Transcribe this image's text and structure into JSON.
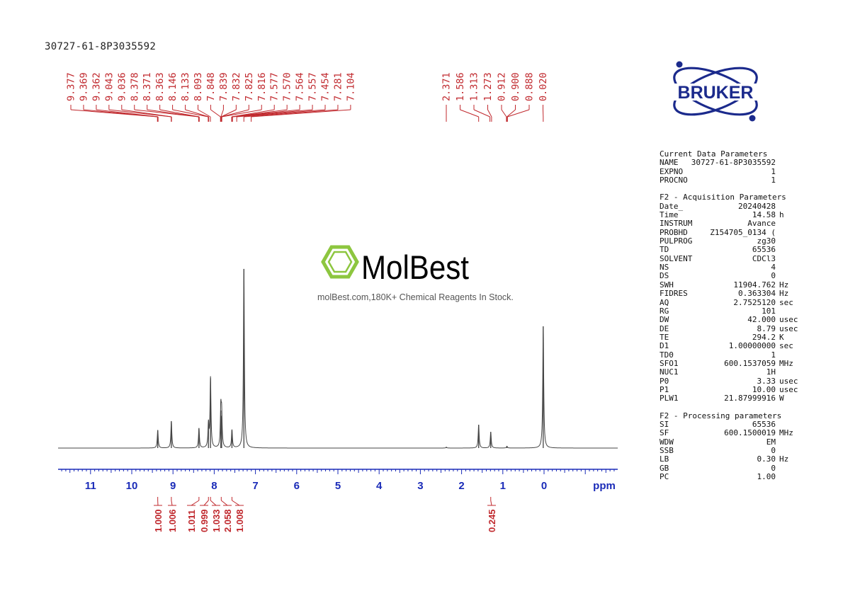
{
  "sample_id": "30727-61-8P3035592",
  "brand": {
    "name": "BRUKER",
    "color": "#1b2a8c"
  },
  "watermark": {
    "name": "MolBest",
    "tagline": "molBest.com,180K+ Chemical Reagents In Stock.",
    "icon": "benzene-ring-icon",
    "color": "#8dc63f"
  },
  "colors": {
    "axis": "#1a2bb8",
    "peak_labels": "#c0282d",
    "spectrum": "#444444"
  },
  "params": {
    "sections": [
      {
        "title": "Current Data Parameters",
        "rows": [
          {
            "key": "NAME",
            "value": "30727-61-8P3035592",
            "unit": ""
          },
          {
            "key": "EXPNO",
            "value": "1",
            "unit": ""
          },
          {
            "key": "PROCNO",
            "value": "1",
            "unit": ""
          }
        ]
      },
      {
        "title": "F2 - Acquisition Parameters",
        "rows": [
          {
            "key": "Date_",
            "value": "20240428",
            "unit": ""
          },
          {
            "key": "Time",
            "value": "14.58",
            "unit": "h"
          },
          {
            "key": "INSTRUM",
            "value": "Avance",
            "unit": ""
          },
          {
            "key": "PROBHD",
            "value": "Z154705_0134 (",
            "unit": ""
          },
          {
            "key": "PULPROG",
            "value": "zg30",
            "unit": ""
          },
          {
            "key": "TD",
            "value": "65536",
            "unit": ""
          },
          {
            "key": "SOLVENT",
            "value": "CDCl3",
            "unit": ""
          },
          {
            "key": "NS",
            "value": "4",
            "unit": ""
          },
          {
            "key": "DS",
            "value": "0",
            "unit": ""
          },
          {
            "key": "SWH",
            "value": "11904.762",
            "unit": "Hz"
          },
          {
            "key": "FIDRES",
            "value": "0.363304",
            "unit": "Hz"
          },
          {
            "key": "AQ",
            "value": "2.7525120",
            "unit": "sec"
          },
          {
            "key": "RG",
            "value": "101",
            "unit": ""
          },
          {
            "key": "DW",
            "value": "42.000",
            "unit": "usec"
          },
          {
            "key": "DE",
            "value": "8.79",
            "unit": "usec"
          },
          {
            "key": "TE",
            "value": "294.2",
            "unit": "K"
          },
          {
            "key": "D1",
            "value": "1.00000000",
            "unit": "sec"
          },
          {
            "key": "TD0",
            "value": "1",
            "unit": ""
          },
          {
            "key": "SFO1",
            "value": "600.1537059",
            "unit": "MHz"
          },
          {
            "key": "NUC1",
            "value": "1H",
            "unit": ""
          },
          {
            "key": "P0",
            "value": "3.33",
            "unit": "usec"
          },
          {
            "key": "P1",
            "value": "10.00",
            "unit": "usec"
          },
          {
            "key": "PLW1",
            "value": "21.87999916",
            "unit": "W"
          }
        ]
      },
      {
        "title": "F2 - Processing parameters",
        "rows": [
          {
            "key": "SI",
            "value": "65536",
            "unit": ""
          },
          {
            "key": "SF",
            "value": "600.1500019",
            "unit": "MHz"
          },
          {
            "key": "WDW",
            "value": "EM",
            "unit": ""
          },
          {
            "key": "SSB",
            "value": "0",
            "unit": ""
          },
          {
            "key": "LB",
            "value": "0.30",
            "unit": "Hz"
          },
          {
            "key": "GB",
            "value": "0",
            "unit": ""
          },
          {
            "key": "PC",
            "value": "1.00",
            "unit": ""
          }
        ]
      }
    ]
  },
  "chart_data": {
    "type": "line",
    "title": "",
    "xlabel": "ppm",
    "ylabel": "",
    "xlim": [
      11.8,
      -1.8
    ],
    "reversed_x": true,
    "x_ticks": [
      "11",
      "10",
      "9",
      "8",
      "7",
      "6",
      "5",
      "4",
      "3",
      "2",
      "1",
      "0"
    ],
    "peak_labels_left": [
      "9.377",
      "9.369",
      "9.362",
      "9.043",
      "9.036",
      "8.378",
      "8.371",
      "8.363",
      "8.146",
      "8.133",
      "8.093",
      "7.848",
      "7.839",
      "7.832",
      "7.825",
      "7.816",
      "7.577",
      "7.570",
      "7.564",
      "7.557",
      "7.454",
      "7.281",
      "7.104"
    ],
    "peak_labels_right": [
      "2.371",
      "1.586",
      "1.313",
      "1.273",
      "0.912",
      "0.900",
      "0.888",
      "0.020"
    ],
    "peaks": [
      {
        "ppm": 9.37,
        "intensity": 0.1
      },
      {
        "ppm": 9.04,
        "intensity": 0.15
      },
      {
        "ppm": 8.37,
        "intensity": 0.11
      },
      {
        "ppm": 8.14,
        "intensity": 0.13
      },
      {
        "ppm": 8.09,
        "intensity": 0.39
      },
      {
        "ppm": 7.84,
        "intensity": 0.21
      },
      {
        "ppm": 7.82,
        "intensity": 0.18
      },
      {
        "ppm": 7.57,
        "intensity": 0.1
      },
      {
        "ppm": 7.28,
        "intensity": 1.0
      },
      {
        "ppm": 2.37,
        "intensity": 0.005
      },
      {
        "ppm": 1.586,
        "intensity": 0.13
      },
      {
        "ppm": 1.293,
        "intensity": 0.09
      },
      {
        "ppm": 0.9,
        "intensity": 0.01
      },
      {
        "ppm": 0.02,
        "intensity": 0.68
      }
    ],
    "integrals": [
      {
        "label": "1.000",
        "ppm": 9.37
      },
      {
        "label": "1.006",
        "ppm": 9.04
      },
      {
        "label": "1.011",
        "ppm": 8.37
      },
      {
        "label": "0.999",
        "ppm": 8.14
      },
      {
        "label": "1.033",
        "ppm": 8.09
      },
      {
        "label": "2.058",
        "ppm": 7.83
      },
      {
        "label": "1.008",
        "ppm": 7.57
      },
      {
        "label": "0.245",
        "ppm": 1.293
      }
    ]
  }
}
